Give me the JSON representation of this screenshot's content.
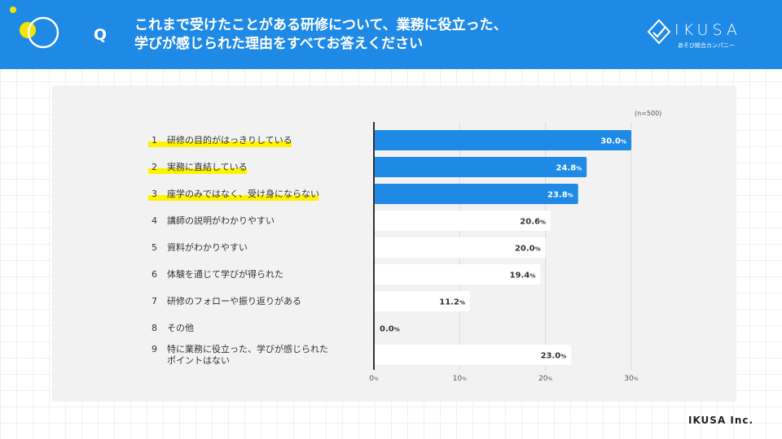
{
  "header": {
    "q_mark": "Q",
    "title_line1": "これまで受けたことがある研修について、業務に役立った、",
    "title_line2": "学びが感じられた理由をすべてお答えください",
    "logo_text": "IKUSA",
    "logo_sub": "あそび総合カンパニー"
  },
  "colors": {
    "header_bg": "#1f8ae6",
    "bar_highlight": "#1f8ae6",
    "bar_plain": "#ffffff",
    "label_highlight": "#fff200"
  },
  "chart_data": {
    "type": "bar",
    "orientation": "horizontal",
    "note": "(n=500)",
    "categories": [
      {
        "num": "1",
        "label": "研修の目的がはっきりしている",
        "label2": "",
        "value": 30.0,
        "value_label": "30.0",
        "highlight": true
      },
      {
        "num": "2",
        "label": "実務に直結している",
        "label2": "",
        "value": 24.8,
        "value_label": "24.8",
        "highlight": true
      },
      {
        "num": "3",
        "label": "座学のみではなく、受け身にならない",
        "label2": "",
        "value": 23.8,
        "value_label": "23.8",
        "highlight": true
      },
      {
        "num": "4",
        "label": "講師の説明がわかりやすい",
        "label2": "",
        "value": 20.6,
        "value_label": "20.6",
        "highlight": false
      },
      {
        "num": "5",
        "label": "資料がわかりやすい",
        "label2": "",
        "value": 20.0,
        "value_label": "20.0",
        "highlight": false
      },
      {
        "num": "6",
        "label": "体験を通じて学びが得られた",
        "label2": "",
        "value": 19.4,
        "value_label": "19.4",
        "highlight": false
      },
      {
        "num": "7",
        "label": "研修のフォローや振り返りがある",
        "label2": "",
        "value": 11.2,
        "value_label": "11.2",
        "highlight": false
      },
      {
        "num": "8",
        "label": "その他",
        "label2": "",
        "value": 0.0,
        "value_label": "0.0",
        "highlight": false
      },
      {
        "num": "9",
        "label": "特に業務に役立った、学びが感じられた",
        "label2": "ポイントはない",
        "value": 23.0,
        "value_label": "23.0",
        "highlight": false
      }
    ],
    "unit": "%",
    "xlim": [
      0,
      30
    ],
    "ticks": [
      {
        "value": 0,
        "label": "0"
      },
      {
        "value": 10,
        "label": "10"
      },
      {
        "value": 20,
        "label": "20"
      },
      {
        "value": 30,
        "label": "30"
      }
    ],
    "grid": true
  },
  "footer": {
    "company": "IKUSA Inc."
  }
}
